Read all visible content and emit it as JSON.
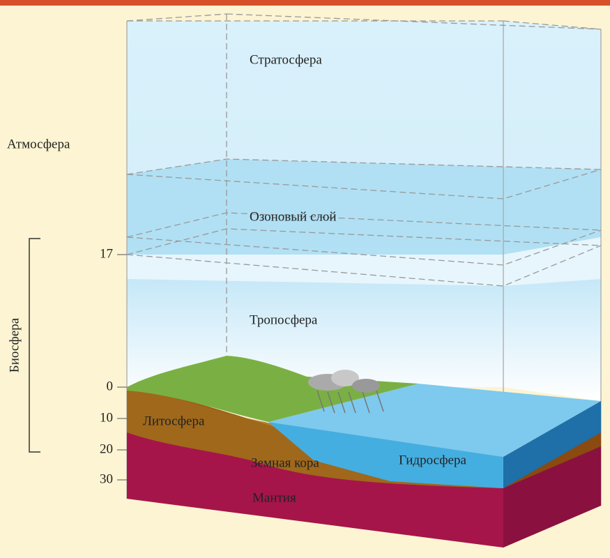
{
  "labels": {
    "stratosphere": "Стратосфера",
    "atmosphere": "Атмосфера",
    "ozone": "Озоновый слой",
    "troposphere": "Тропосфера",
    "biosphere": "Биосфера",
    "lithosphere": "Литосфера",
    "crust": "Земная кора",
    "hydrosphere": "Гидросфера",
    "mantle": "Мантия"
  },
  "scale": [
    17,
    0,
    10,
    20,
    30
  ]
}
